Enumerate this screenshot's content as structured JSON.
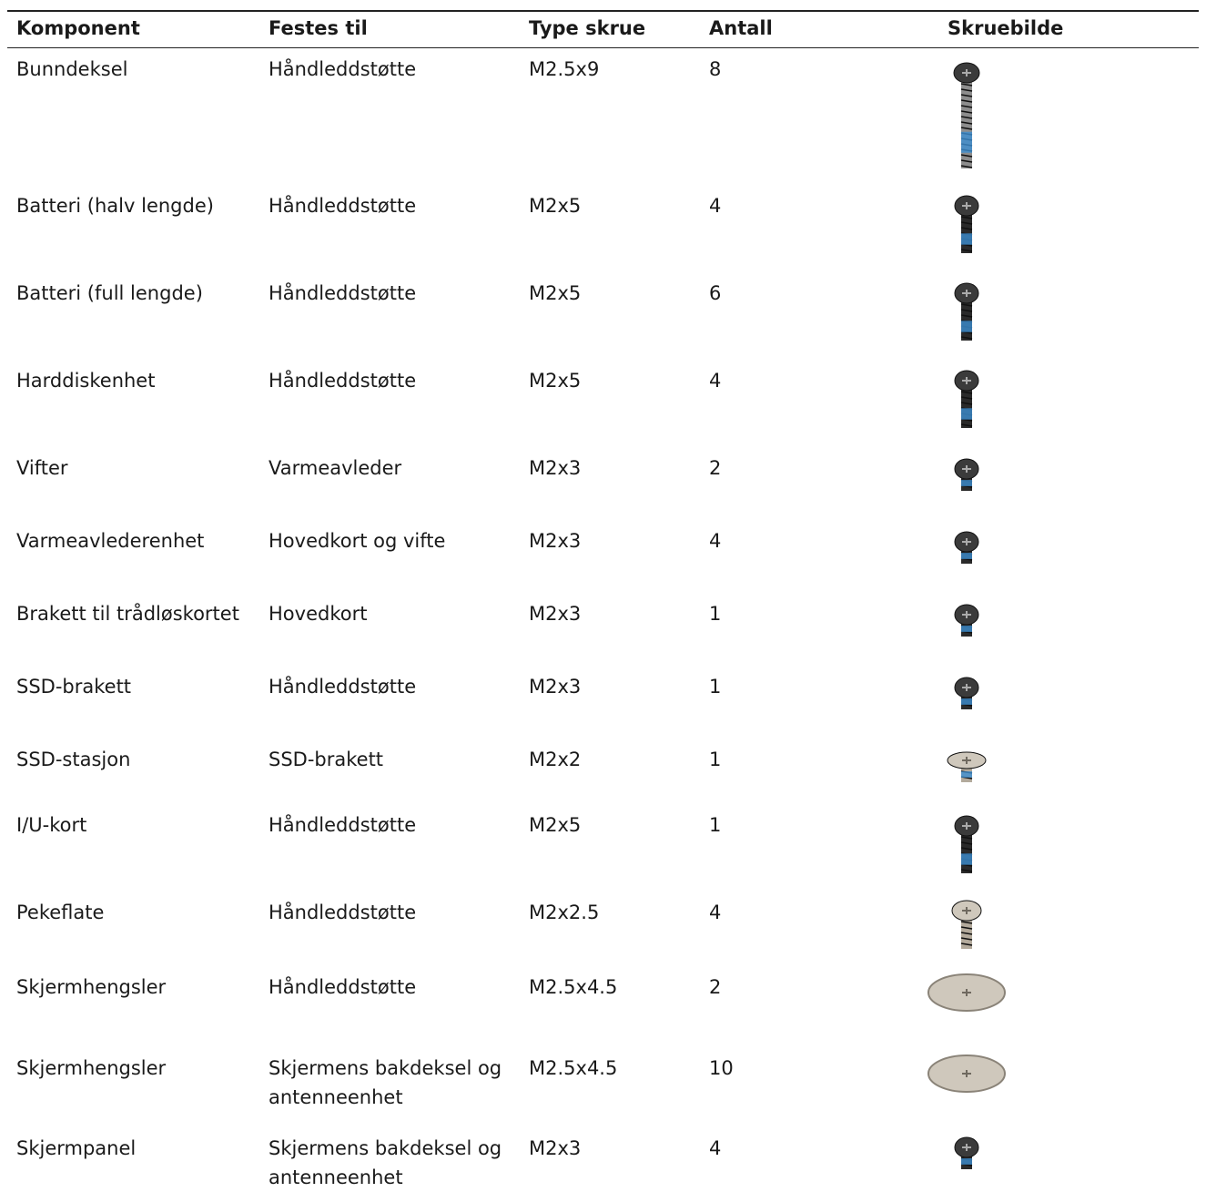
{
  "table": {
    "header": [
      "Komponent",
      "Festes til",
      "Type skrue",
      "Antall",
      "Skruebilde"
    ],
    "rows": [
      [
        "Bunndeksel",
        "Håndleddstøtte",
        "M2.5x9",
        "8"
      ],
      [
        "Batteri (halv lengde)",
        "Håndleddstøtte",
        "M2x5",
        "4"
      ],
      [
        "Batteri (full lengde)",
        "Håndleddstøtte",
        "M2x5",
        "6"
      ],
      [
        "Harddiskenhet",
        "Håndleddstøtte",
        "M2x5",
        "4"
      ],
      [
        "Vifter",
        "Varmeavleder",
        "M2x3",
        "2"
      ],
      [
        "Varmeavlederenhet",
        "Hovedkort og vifte",
        "M2x3",
        "4"
      ],
      [
        "Brakett til trådløskortet",
        "Hovedkort",
        "M2x3",
        "1"
      ],
      [
        "SSD-brakett",
        "Håndleddstøtte",
        "M2x3",
        "1"
      ],
      [
        "SSD-stasjon",
        "SSD-brakett",
        "M2x2",
        "1"
      ],
      [
        "I/U-kort",
        "Håndleddstøtte",
        "M2x5",
        "1"
      ],
      [
        "Pekeflate",
        "Håndleddstøtte",
        "M2x2.5",
        "4"
      ],
      [
        "Skjermhengsler",
        "Håndleddstøtte",
        "M2.5x4.5",
        "2"
      ],
      [
        "Skjermhengsler",
        "Skjermens bakdeksel og antenneenhet",
        "M2.5x4.5",
        "10"
      ],
      [
        "Skjermpanel",
        "Skjermens bakdeksel og antenneenhet",
        "M2x3",
        "4"
      ]
    ]
  }
}
